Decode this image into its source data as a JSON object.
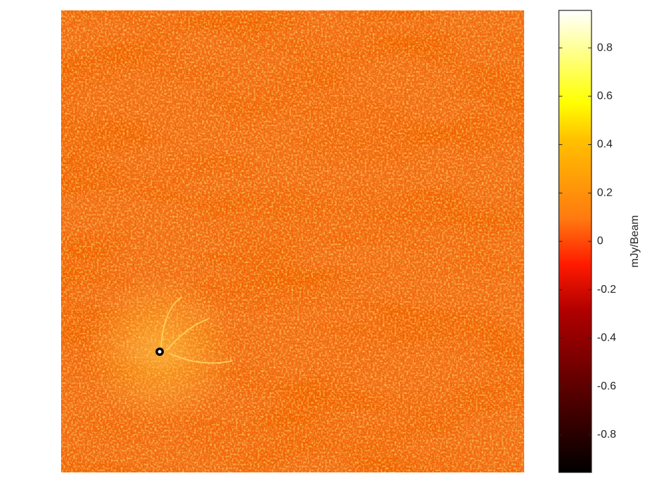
{
  "chart_data": {
    "type": "image",
    "colormap": "hot",
    "colorbar": {
      "label": "mJy/Beam",
      "clim": [
        -0.955,
        0.955
      ],
      "ticks": [
        -0.8,
        -0.6,
        -0.4,
        -0.2,
        0,
        0.2,
        0.4,
        0.6,
        0.8
      ]
    }
  }
}
